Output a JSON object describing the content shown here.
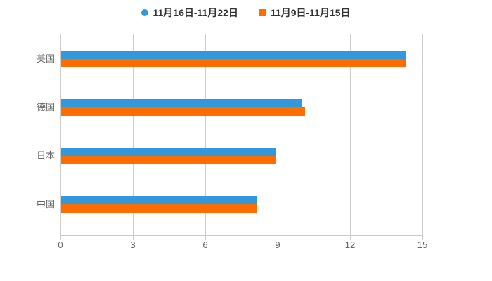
{
  "chart_data": {
    "type": "bar",
    "orientation": "horizontal",
    "title": "",
    "categories": [
      "美国",
      "德国",
      "日本",
      "中国"
    ],
    "series": [
      {
        "name": "11月16日-11月22日",
        "color": "#3398DB",
        "marker": "circle",
        "values": [
          14.3,
          10.0,
          8.9,
          8.1
        ]
      },
      {
        "name": "11月9日-11月15日",
        "color": "#FF6D00",
        "marker": "square",
        "values": [
          14.3,
          10.1,
          8.9,
          8.1
        ]
      }
    ],
    "x_ticks": [
      0,
      3,
      6,
      9,
      12,
      15
    ],
    "xlim": [
      0,
      15
    ],
    "xlabel": "",
    "ylabel": "",
    "grid": true,
    "legend_position": "top"
  },
  "colors": {
    "background": "#FFFFFF",
    "axis_line": "#CCCCCC",
    "grid_line": "#CCCCCC",
    "tick_label": "#666666",
    "category_label": "#666666",
    "legend_text": "#333333"
  }
}
